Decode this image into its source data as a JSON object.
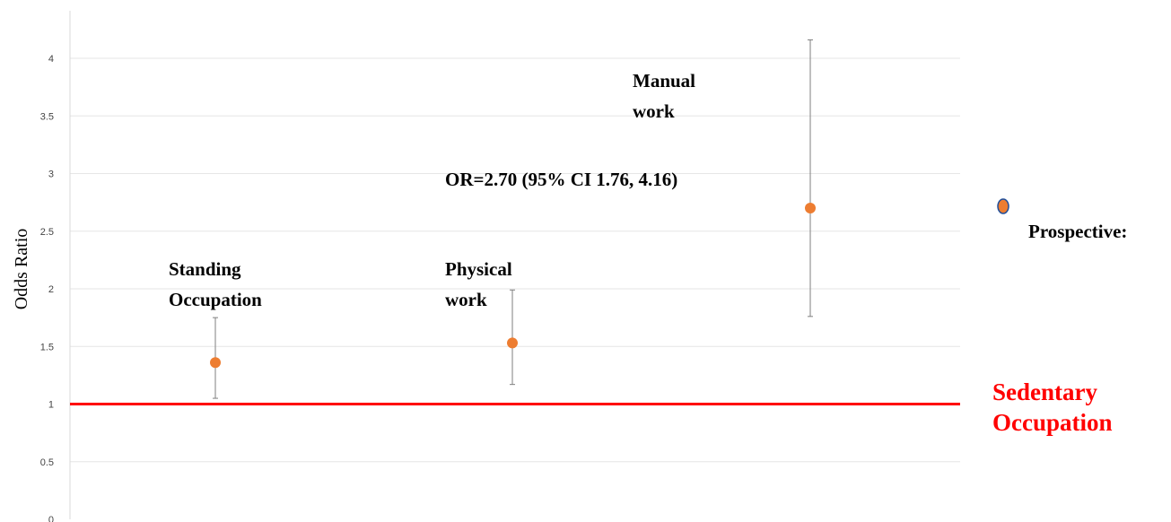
{
  "chart_data": {
    "type": "scatter",
    "ylabel": "Odds Ratio",
    "xlabel": "",
    "ylim": [
      0,
      4.4
    ],
    "yticks": [
      "0",
      "0.5",
      "1",
      "1.5",
      "2",
      "2.5",
      "3",
      "3.5",
      "4"
    ],
    "grid": true,
    "series": [
      {
        "name": "Prospective:",
        "points": [
          {
            "category": "Standing Occupation",
            "or": 1.36,
            "ci_low": 1.05,
            "ci_high": 1.75
          },
          {
            "category": "Physical work",
            "or": 1.53,
            "ci_low": 1.17,
            "ci_high": 1.99
          },
          {
            "category": "Manual work",
            "or": 2.7,
            "ci_low": 1.76,
            "ci_high": 4.16
          }
        ]
      }
    ],
    "reference_line": {
      "y": 1,
      "label_lines": [
        "Sedentary",
        "Occupation"
      ]
    },
    "labels": [
      {
        "lines": [
          "Standing",
          "Occupation"
        ]
      },
      {
        "lines": [
          "Physical",
          "work"
        ]
      },
      {
        "lines": [
          "Manual",
          "work"
        ]
      }
    ],
    "annotation": "OR=2.70 (95% CI 1.76, 4.16)",
    "legend": {
      "label": "Prospective:",
      "position": "right"
    },
    "colors": {
      "marker": "#ed7d31",
      "reference": "#ff0000",
      "errorbar": "#7f7f7f",
      "grid": "#e6e6e6"
    }
  }
}
